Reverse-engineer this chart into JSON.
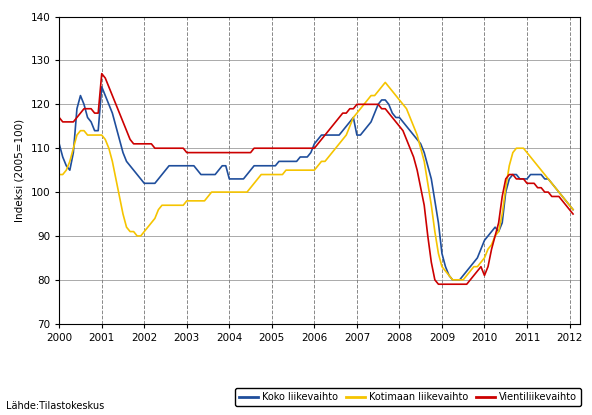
{
  "title": "",
  "ylabel": "Indeksi (2005=100)",
  "xlabel": "",
  "ylim": [
    70,
    140
  ],
  "xlim": [
    2000.0,
    2012.25
  ],
  "yticks": [
    70,
    80,
    90,
    100,
    110,
    120,
    130,
    140
  ],
  "xticks": [
    2000,
    2001,
    2002,
    2003,
    2004,
    2005,
    2006,
    2007,
    2008,
    2009,
    2010,
    2011,
    2012
  ],
  "source_text": "Lähde:Tilastokeskus",
  "legend": [
    "Koko liikevaihto",
    "Kotimaan liikevaihto",
    "Vientiliikevaihto"
  ],
  "colors": [
    "#1f4e9c",
    "#f5c400",
    "#cc0000"
  ],
  "background_color": "#ffffff",
  "grid_color": "#888888",
  "blue": {
    "t": [
      2000.0,
      2000.083,
      2000.167,
      2000.25,
      2000.333,
      2000.417,
      2000.5,
      2000.583,
      2000.667,
      2000.75,
      2000.833,
      2000.917,
      2001.0,
      2001.083,
      2001.167,
      2001.25,
      2001.333,
      2001.417,
      2001.5,
      2001.583,
      2001.667,
      2001.75,
      2001.833,
      2001.917,
      2002.0,
      2002.083,
      2002.167,
      2002.25,
      2002.333,
      2002.417,
      2002.5,
      2002.583,
      2002.667,
      2002.75,
      2002.833,
      2002.917,
      2003.0,
      2003.083,
      2003.167,
      2003.25,
      2003.333,
      2003.417,
      2003.5,
      2003.583,
      2003.667,
      2003.75,
      2003.833,
      2003.917,
      2004.0,
      2004.083,
      2004.167,
      2004.25,
      2004.333,
      2004.417,
      2004.5,
      2004.583,
      2004.667,
      2004.75,
      2004.833,
      2004.917,
      2005.0,
      2005.083,
      2005.167,
      2005.25,
      2005.333,
      2005.417,
      2005.5,
      2005.583,
      2005.667,
      2005.75,
      2005.833,
      2005.917,
      2006.0,
      2006.083,
      2006.167,
      2006.25,
      2006.333,
      2006.417,
      2006.5,
      2006.583,
      2006.667,
      2006.75,
      2006.833,
      2006.917,
      2007.0,
      2007.083,
      2007.167,
      2007.25,
      2007.333,
      2007.417,
      2007.5,
      2007.583,
      2007.667,
      2007.75,
      2007.833,
      2007.917,
      2008.0,
      2008.083,
      2008.167,
      2008.25,
      2008.333,
      2008.417,
      2008.5,
      2008.583,
      2008.667,
      2008.75,
      2008.833,
      2008.917,
      2009.0,
      2009.083,
      2009.167,
      2009.25,
      2009.333,
      2009.417,
      2009.5,
      2009.583,
      2009.667,
      2009.75,
      2009.833,
      2009.917,
      2010.0,
      2010.083,
      2010.167,
      2010.25,
      2010.333,
      2010.417,
      2010.5,
      2010.583,
      2010.667,
      2010.75,
      2010.833,
      2010.917,
      2011.0,
      2011.083,
      2011.167,
      2011.25,
      2011.333,
      2011.417,
      2011.5,
      2011.583,
      2011.667,
      2011.75,
      2011.833,
      2011.917,
      2012.0,
      2012.083
    ],
    "v": [
      111,
      108,
      106,
      105,
      109,
      119,
      122,
      120,
      117,
      116,
      114,
      114,
      124,
      122,
      120,
      118,
      115,
      112,
      109,
      107,
      106,
      105,
      104,
      103,
      102,
      102,
      102,
      102,
      103,
      104,
      105,
      106,
      106,
      106,
      106,
      106,
      106,
      106,
      106,
      105,
      104,
      104,
      104,
      104,
      104,
      105,
      106,
      106,
      103,
      103,
      103,
      103,
      103,
      104,
      105,
      106,
      106,
      106,
      106,
      106,
      106,
      106,
      107,
      107,
      107,
      107,
      107,
      107,
      108,
      108,
      108,
      109,
      111,
      112,
      113,
      113,
      113,
      113,
      113,
      113,
      114,
      115,
      116,
      117,
      113,
      113,
      114,
      115,
      116,
      118,
      120,
      121,
      121,
      120,
      118,
      117,
      117,
      116,
      115,
      114,
      113,
      112,
      111,
      109,
      106,
      103,
      98,
      93,
      86,
      83,
      81,
      80,
      80,
      80,
      81,
      82,
      83,
      84,
      85,
      87,
      89,
      90,
      91,
      92,
      91,
      93,
      100,
      103,
      104,
      104,
      103,
      103,
      103,
      104,
      104,
      104,
      104,
      103,
      103,
      102,
      101,
      100,
      99,
      98,
      97,
      96
    ]
  },
  "yellow": {
    "t": [
      2000.0,
      2000.083,
      2000.167,
      2000.25,
      2000.333,
      2000.417,
      2000.5,
      2000.583,
      2000.667,
      2000.75,
      2000.833,
      2000.917,
      2001.0,
      2001.083,
      2001.167,
      2001.25,
      2001.333,
      2001.417,
      2001.5,
      2001.583,
      2001.667,
      2001.75,
      2001.833,
      2001.917,
      2002.0,
      2002.083,
      2002.167,
      2002.25,
      2002.333,
      2002.417,
      2002.5,
      2002.583,
      2002.667,
      2002.75,
      2002.833,
      2002.917,
      2003.0,
      2003.083,
      2003.167,
      2003.25,
      2003.333,
      2003.417,
      2003.5,
      2003.583,
      2003.667,
      2003.75,
      2003.833,
      2003.917,
      2004.0,
      2004.083,
      2004.167,
      2004.25,
      2004.333,
      2004.417,
      2004.5,
      2004.583,
      2004.667,
      2004.75,
      2004.833,
      2004.917,
      2005.0,
      2005.083,
      2005.167,
      2005.25,
      2005.333,
      2005.417,
      2005.5,
      2005.583,
      2005.667,
      2005.75,
      2005.833,
      2005.917,
      2006.0,
      2006.083,
      2006.167,
      2006.25,
      2006.333,
      2006.417,
      2006.5,
      2006.583,
      2006.667,
      2006.75,
      2006.833,
      2006.917,
      2007.0,
      2007.083,
      2007.167,
      2007.25,
      2007.333,
      2007.417,
      2007.5,
      2007.583,
      2007.667,
      2007.75,
      2007.833,
      2007.917,
      2008.0,
      2008.083,
      2008.167,
      2008.25,
      2008.333,
      2008.417,
      2008.5,
      2008.583,
      2008.667,
      2008.75,
      2008.833,
      2008.917,
      2009.0,
      2009.083,
      2009.167,
      2009.25,
      2009.333,
      2009.417,
      2009.5,
      2009.583,
      2009.667,
      2009.75,
      2009.833,
      2009.917,
      2010.0,
      2010.083,
      2010.167,
      2010.25,
      2010.333,
      2010.417,
      2010.5,
      2010.583,
      2010.667,
      2010.75,
      2010.833,
      2010.917,
      2011.0,
      2011.083,
      2011.167,
      2011.25,
      2011.333,
      2011.417,
      2011.5,
      2011.583,
      2011.667,
      2011.75,
      2011.833,
      2011.917,
      2012.0,
      2012.083
    ],
    "v": [
      104,
      104,
      105,
      107,
      110,
      113,
      114,
      114,
      113,
      113,
      113,
      113,
      113,
      112,
      110,
      107,
      103,
      99,
      95,
      92,
      91,
      91,
      90,
      90,
      91,
      92,
      93,
      94,
      96,
      97,
      97,
      97,
      97,
      97,
      97,
      97,
      98,
      98,
      98,
      98,
      98,
      98,
      99,
      100,
      100,
      100,
      100,
      100,
      100,
      100,
      100,
      100,
      100,
      100,
      101,
      102,
      103,
      104,
      104,
      104,
      104,
      104,
      104,
      104,
      105,
      105,
      105,
      105,
      105,
      105,
      105,
      105,
      105,
      106,
      107,
      107,
      108,
      109,
      110,
      111,
      112,
      113,
      115,
      117,
      118,
      119,
      120,
      121,
      122,
      122,
      123,
      124,
      125,
      124,
      123,
      122,
      121,
      120,
      119,
      117,
      115,
      113,
      110,
      107,
      102,
      97,
      91,
      86,
      83,
      82,
      81,
      80,
      80,
      80,
      80,
      81,
      82,
      83,
      83,
      84,
      85,
      87,
      88,
      90,
      91,
      95,
      101,
      106,
      109,
      110,
      110,
      110,
      109,
      108,
      107,
      106,
      105,
      104,
      103,
      102,
      101,
      100,
      99,
      98,
      97,
      96
    ]
  },
  "red": {
    "t": [
      2000.0,
      2000.083,
      2000.167,
      2000.25,
      2000.333,
      2000.417,
      2000.5,
      2000.583,
      2000.667,
      2000.75,
      2000.833,
      2000.917,
      2001.0,
      2001.083,
      2001.167,
      2001.25,
      2001.333,
      2001.417,
      2001.5,
      2001.583,
      2001.667,
      2001.75,
      2001.833,
      2001.917,
      2002.0,
      2002.083,
      2002.167,
      2002.25,
      2002.333,
      2002.417,
      2002.5,
      2002.583,
      2002.667,
      2002.75,
      2002.833,
      2002.917,
      2003.0,
      2003.083,
      2003.167,
      2003.25,
      2003.333,
      2003.417,
      2003.5,
      2003.583,
      2003.667,
      2003.75,
      2003.833,
      2003.917,
      2004.0,
      2004.083,
      2004.167,
      2004.25,
      2004.333,
      2004.417,
      2004.5,
      2004.583,
      2004.667,
      2004.75,
      2004.833,
      2004.917,
      2005.0,
      2005.083,
      2005.167,
      2005.25,
      2005.333,
      2005.417,
      2005.5,
      2005.583,
      2005.667,
      2005.75,
      2005.833,
      2005.917,
      2006.0,
      2006.083,
      2006.167,
      2006.25,
      2006.333,
      2006.417,
      2006.5,
      2006.583,
      2006.667,
      2006.75,
      2006.833,
      2006.917,
      2007.0,
      2007.083,
      2007.167,
      2007.25,
      2007.333,
      2007.417,
      2007.5,
      2007.583,
      2007.667,
      2007.75,
      2007.833,
      2007.917,
      2008.0,
      2008.083,
      2008.167,
      2008.25,
      2008.333,
      2008.417,
      2008.5,
      2008.583,
      2008.667,
      2008.75,
      2008.833,
      2008.917,
      2009.0,
      2009.083,
      2009.167,
      2009.25,
      2009.333,
      2009.417,
      2009.5,
      2009.583,
      2009.667,
      2009.75,
      2009.833,
      2009.917,
      2010.0,
      2010.083,
      2010.167,
      2010.25,
      2010.333,
      2010.417,
      2010.5,
      2010.583,
      2010.667,
      2010.75,
      2010.833,
      2010.917,
      2011.0,
      2011.083,
      2011.167,
      2011.25,
      2011.333,
      2011.417,
      2011.5,
      2011.583,
      2011.667,
      2011.75,
      2011.833,
      2011.917,
      2012.0,
      2012.083
    ],
    "v": [
      117,
      116,
      116,
      116,
      116,
      117,
      118,
      119,
      119,
      119,
      118,
      118,
      127,
      126,
      124,
      122,
      120,
      118,
      116,
      114,
      112,
      111,
      111,
      111,
      111,
      111,
      111,
      110,
      110,
      110,
      110,
      110,
      110,
      110,
      110,
      110,
      109,
      109,
      109,
      109,
      109,
      109,
      109,
      109,
      109,
      109,
      109,
      109,
      109,
      109,
      109,
      109,
      109,
      109,
      109,
      110,
      110,
      110,
      110,
      110,
      110,
      110,
      110,
      110,
      110,
      110,
      110,
      110,
      110,
      110,
      110,
      110,
      110,
      111,
      112,
      113,
      114,
      115,
      116,
      117,
      118,
      118,
      119,
      119,
      120,
      120,
      120,
      120,
      120,
      120,
      120,
      119,
      119,
      118,
      117,
      116,
      115,
      114,
      112,
      110,
      108,
      105,
      101,
      97,
      90,
      84,
      80,
      79,
      79,
      79,
      79,
      79,
      79,
      79,
      79,
      79,
      80,
      81,
      82,
      83,
      81,
      83,
      87,
      90,
      93,
      99,
      103,
      104,
      104,
      103,
      103,
      103,
      102,
      102,
      102,
      101,
      101,
      100,
      100,
      99,
      99,
      99,
      98,
      97,
      96,
      95
    ]
  }
}
